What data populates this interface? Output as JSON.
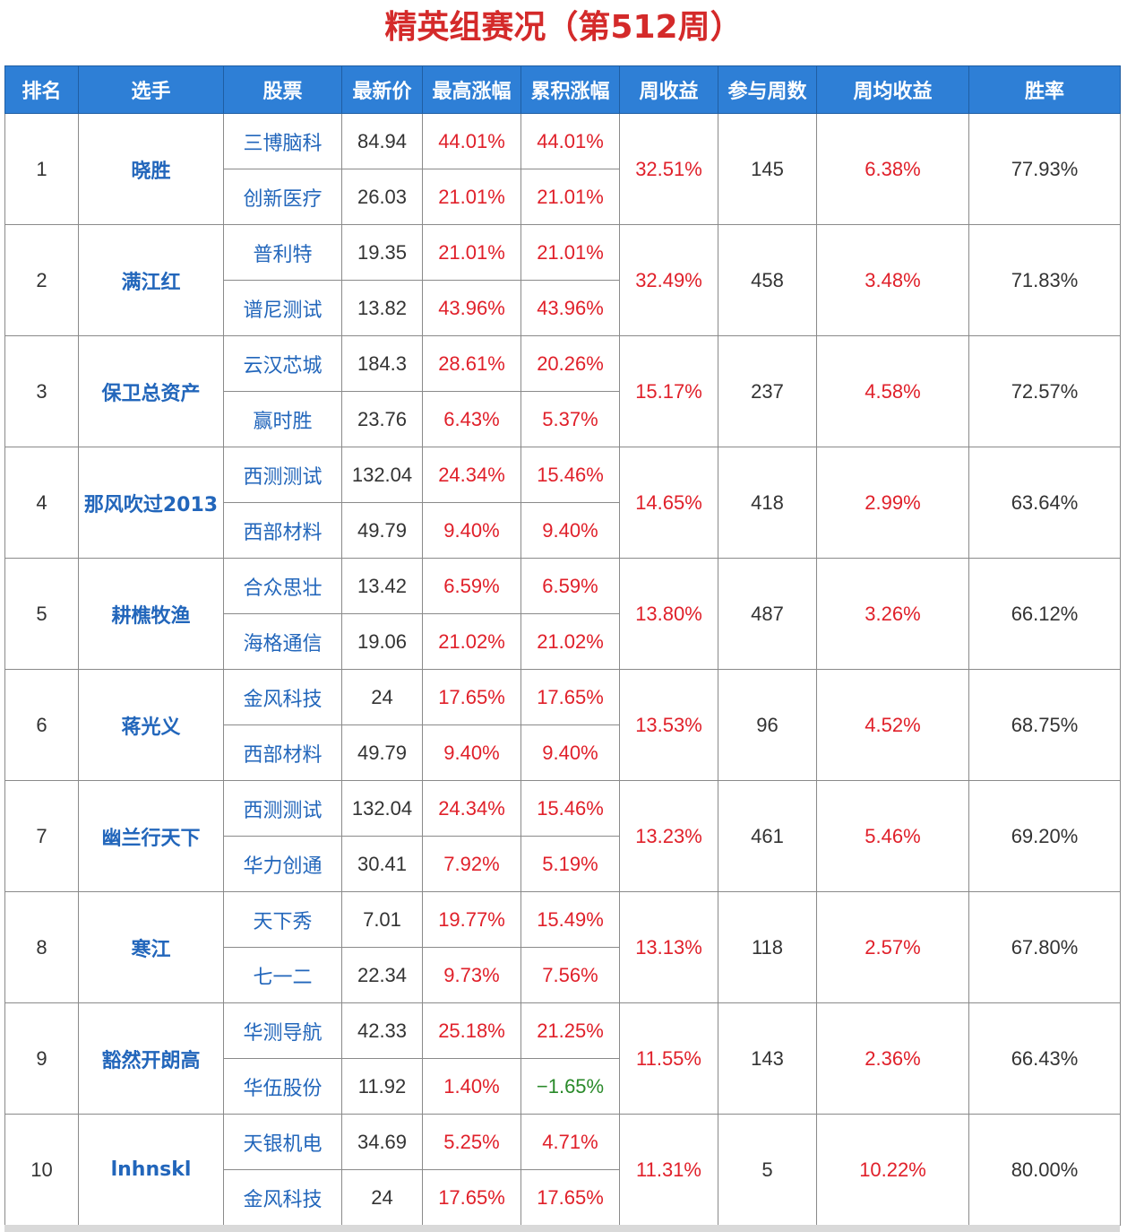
{
  "title": "精英组赛况（第512周）",
  "colors": {
    "header_bg": "#2e7fd6",
    "up": "#e0202a",
    "down": "#2a8a2a",
    "link": "#2266bb",
    "title": "#d42a2a"
  },
  "headers": [
    "排名",
    "选手",
    "股票",
    "最新价",
    "最高涨幅",
    "累积涨幅",
    "周收益",
    "参与周数",
    "周均收益",
    "胜率"
  ],
  "rows": [
    {
      "rank": "1",
      "player": "晓胜",
      "stocks": [
        {
          "name": "三博脑科",
          "price": "84.94",
          "max_gain": "44.01%",
          "cum_gain": "44.01%"
        },
        {
          "name": "创新医疗",
          "price": "26.03",
          "max_gain": "21.01%",
          "cum_gain": "21.01%"
        }
      ],
      "weekly_return": "32.51%",
      "weeks": "145",
      "avg_return": "6.38%",
      "win_rate": "77.93%"
    },
    {
      "rank": "2",
      "player": "满江红",
      "stocks": [
        {
          "name": "普利特",
          "price": "19.35",
          "max_gain": "21.01%",
          "cum_gain": "21.01%"
        },
        {
          "name": "谱尼测试",
          "price": "13.82",
          "max_gain": "43.96%",
          "cum_gain": "43.96%"
        }
      ],
      "weekly_return": "32.49%",
      "weeks": "458",
      "avg_return": "3.48%",
      "win_rate": "71.83%"
    },
    {
      "rank": "3",
      "player": "保卫总资产",
      "stocks": [
        {
          "name": "云汉芯城",
          "price": "184.3",
          "max_gain": "28.61%",
          "cum_gain": "20.26%"
        },
        {
          "name": "赢时胜",
          "price": "23.76",
          "max_gain": "6.43%",
          "cum_gain": "5.37%"
        }
      ],
      "weekly_return": "15.17%",
      "weeks": "237",
      "avg_return": "4.58%",
      "win_rate": "72.57%"
    },
    {
      "rank": "4",
      "player": "那风吹过2013",
      "stocks": [
        {
          "name": "西测测试",
          "price": "132.04",
          "max_gain": "24.34%",
          "cum_gain": "15.46%"
        },
        {
          "name": "西部材料",
          "price": "49.79",
          "max_gain": "9.40%",
          "cum_gain": "9.40%"
        }
      ],
      "weekly_return": "14.65%",
      "weeks": "418",
      "avg_return": "2.99%",
      "win_rate": "63.64%"
    },
    {
      "rank": "5",
      "player": "耕樵牧渔",
      "stocks": [
        {
          "name": "合众思壮",
          "price": "13.42",
          "max_gain": "6.59%",
          "cum_gain": "6.59%"
        },
        {
          "name": "海格通信",
          "price": "19.06",
          "max_gain": "21.02%",
          "cum_gain": "21.02%"
        }
      ],
      "weekly_return": "13.80%",
      "weeks": "487",
      "avg_return": "3.26%",
      "win_rate": "66.12%"
    },
    {
      "rank": "6",
      "player": "蒋光义",
      "stocks": [
        {
          "name": "金风科技",
          "price": "24",
          "max_gain": "17.65%",
          "cum_gain": "17.65%"
        },
        {
          "name": "西部材料",
          "price": "49.79",
          "max_gain": "9.40%",
          "cum_gain": "9.40%"
        }
      ],
      "weekly_return": "13.53%",
      "weeks": "96",
      "avg_return": "4.52%",
      "win_rate": "68.75%"
    },
    {
      "rank": "7",
      "player": "幽兰行天下",
      "stocks": [
        {
          "name": "西测测试",
          "price": "132.04",
          "max_gain": "24.34%",
          "cum_gain": "15.46%"
        },
        {
          "name": "华力创通",
          "price": "30.41",
          "max_gain": "7.92%",
          "cum_gain": "5.19%"
        }
      ],
      "weekly_return": "13.23%",
      "weeks": "461",
      "avg_return": "5.46%",
      "win_rate": "69.20%"
    },
    {
      "rank": "8",
      "player": "寒江",
      "stocks": [
        {
          "name": "天下秀",
          "price": "7.01",
          "max_gain": "19.77%",
          "cum_gain": "15.49%"
        },
        {
          "name": "七一二",
          "price": "22.34",
          "max_gain": "9.73%",
          "cum_gain": "7.56%"
        }
      ],
      "weekly_return": "13.13%",
      "weeks": "118",
      "avg_return": "2.57%",
      "win_rate": "67.80%"
    },
    {
      "rank": "9",
      "player": "豁然开朗高",
      "stocks": [
        {
          "name": "华测导航",
          "price": "42.33",
          "max_gain": "25.18%",
          "cum_gain": "21.25%"
        },
        {
          "name": "华伍股份",
          "price": "11.92",
          "max_gain": "1.40%",
          "cum_gain": "−1.65%"
        }
      ],
      "weekly_return": "11.55%",
      "weeks": "143",
      "avg_return": "2.36%",
      "win_rate": "66.43%"
    },
    {
      "rank": "10",
      "player": "lnhnskl",
      "stocks": [
        {
          "name": "天银机电",
          "price": "34.69",
          "max_gain": "5.25%",
          "cum_gain": "4.71%"
        },
        {
          "name": "金风科技",
          "price": "24",
          "max_gain": "17.65%",
          "cum_gain": "17.65%"
        }
      ],
      "weekly_return": "11.31%",
      "weeks": "5",
      "avg_return": "10.22%",
      "win_rate": "80.00%"
    }
  ]
}
